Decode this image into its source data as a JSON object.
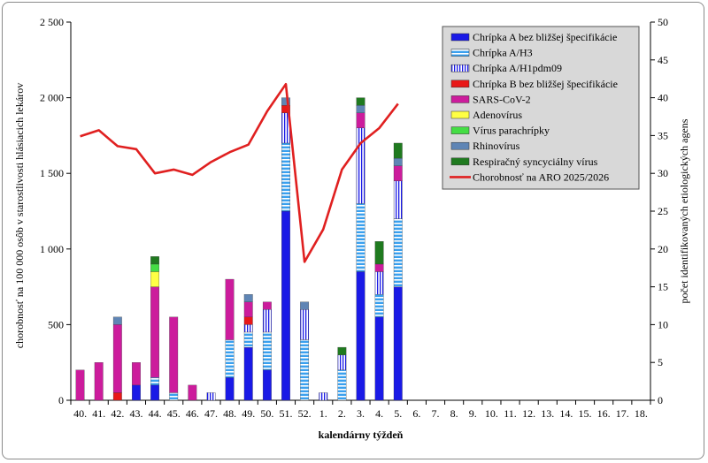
{
  "chart_data": {
    "type": "bar",
    "stacked": true,
    "categories": [
      "40.",
      "41.",
      "42.",
      "43.",
      "44.",
      "45.",
      "46.",
      "47.",
      "48.",
      "49.",
      "50.",
      "51.",
      "52.",
      "1.",
      "2.",
      "3.",
      "4.",
      "5.",
      "6.",
      "7.",
      "8.",
      "9.",
      "10.",
      "11.",
      "12.",
      "13.",
      "14.",
      "15.",
      "16.",
      "17.",
      "18."
    ],
    "xlabel": "kalendárny týždeň",
    "ylabel": "chorobnosť na 100 000 osôb v starostlivosti hlásiacich lekárov",
    "y2label": "počet identifikovaných etiologických agens",
    "ylim": [
      0,
      2500
    ],
    "y2lim": [
      0,
      50
    ],
    "yticks": [
      "0",
      "500",
      "1 000",
      "1 500",
      "2 000",
      "2 500"
    ],
    "y2ticks": [
      "0",
      "5",
      "10",
      "15",
      "20",
      "25",
      "30",
      "35",
      "40",
      "45",
      "50"
    ],
    "grid": false,
    "legend_position": "top-right",
    "series": [
      {
        "name": "Chrípka A bez bližšej špecifikácie",
        "color": "#1a1ae6",
        "pattern": "solid",
        "values": [
          0,
          0,
          0,
          2,
          2,
          0,
          0,
          0,
          3,
          7,
          4,
          25,
          0,
          0,
          0,
          17,
          11,
          15,
          0,
          0,
          0,
          0,
          0,
          0,
          0,
          0,
          0,
          0,
          0,
          0,
          0
        ]
      },
      {
        "name": "Chrípka A/H3",
        "color": "#3aa0ee",
        "pattern": "hstripe",
        "values": [
          0,
          0,
          0,
          0,
          1,
          1,
          0,
          0,
          5,
          2,
          5,
          9,
          8,
          0,
          4,
          9,
          3,
          9,
          0,
          0,
          0,
          0,
          0,
          0,
          0,
          0,
          0,
          0,
          0,
          0,
          0
        ]
      },
      {
        "name": "Chrípka A/H1pdm09",
        "color": "#1a1ae6",
        "pattern": "vstripe",
        "values": [
          0,
          0,
          0,
          0,
          0,
          0,
          0,
          1,
          0,
          1,
          3,
          4,
          4,
          1,
          2,
          10,
          3,
          5,
          0,
          0,
          0,
          0,
          0,
          0,
          0,
          0,
          0,
          0,
          0,
          0,
          0
        ]
      },
      {
        "name": "Chrípka B bez bližšej špecifikácie",
        "color": "#e81818",
        "pattern": "solid",
        "values": [
          0,
          0,
          1,
          0,
          0,
          0,
          0,
          0,
          0,
          1,
          0,
          1,
          0,
          0,
          0,
          0,
          0,
          0,
          0,
          0,
          0,
          0,
          0,
          0,
          0,
          0,
          0,
          0,
          0,
          0,
          0
        ]
      },
      {
        "name": "SARS-CoV-2",
        "color": "#cc1c9c",
        "pattern": "solid",
        "values": [
          4,
          5,
          9,
          3,
          12,
          10,
          2,
          0,
          8,
          2,
          1,
          0,
          0,
          0,
          0,
          2,
          1,
          2,
          0,
          0,
          0,
          0,
          0,
          0,
          0,
          0,
          0,
          0,
          0,
          0,
          0
        ]
      },
      {
        "name": "Adenovírus",
        "color": "#ffff44",
        "pattern": "solid",
        "values": [
          0,
          0,
          0,
          0,
          2,
          0,
          0,
          0,
          0,
          0,
          0,
          0,
          0,
          0,
          0,
          0,
          0,
          0,
          0,
          0,
          0,
          0,
          0,
          0,
          0,
          0,
          0,
          0,
          0,
          0,
          0
        ]
      },
      {
        "name": "Vírus parachrípky",
        "color": "#44dd44",
        "pattern": "solid",
        "values": [
          0,
          0,
          0,
          0,
          1,
          0,
          0,
          0,
          0,
          0,
          0,
          0,
          0,
          0,
          0,
          0,
          0,
          0,
          0,
          0,
          0,
          0,
          0,
          0,
          0,
          0,
          0,
          0,
          0,
          0,
          0
        ]
      },
      {
        "name": "Rhinovírus",
        "color": "#5f85b5",
        "pattern": "solid",
        "values": [
          0,
          0,
          1,
          0,
          0,
          0,
          0,
          0,
          0,
          1,
          0,
          1,
          1,
          0,
          0,
          1,
          0,
          1,
          0,
          0,
          0,
          0,
          0,
          0,
          0,
          0,
          0,
          0,
          0,
          0,
          0
        ]
      },
      {
        "name": "Respiračný syncyciálny vírus",
        "color": "#1f7a1f",
        "pattern": "solid",
        "values": [
          0,
          0,
          0,
          0,
          1,
          0,
          0,
          0,
          0,
          0,
          0,
          0,
          0,
          0,
          1,
          1,
          3,
          2,
          0,
          0,
          0,
          0,
          0,
          0,
          0,
          0,
          0,
          0,
          0,
          0,
          0
        ]
      }
    ],
    "line": {
      "name": "Chorobnosť na ARO 2025/2026",
      "color": "#e02020",
      "values": [
        1745,
        1785,
        1680,
        1660,
        1500,
        1525,
        1490,
        1575,
        1640,
        1690,
        1910,
        2090,
        915,
        1130,
        1525,
        1700,
        1800,
        1960
      ]
    }
  }
}
